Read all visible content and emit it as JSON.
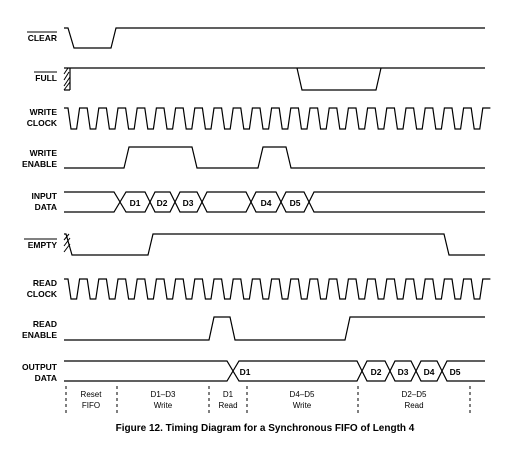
{
  "signals": [
    {
      "id": "clear",
      "lines": [
        "CLEAR"
      ],
      "overbar": true
    },
    {
      "id": "full",
      "lines": [
        "FULL"
      ],
      "overbar": true
    },
    {
      "id": "write-clock",
      "lines": [
        "WRITE",
        "CLOCK"
      ],
      "overbar": false
    },
    {
      "id": "write-enable",
      "lines": [
        "WRITE",
        "ENABLE"
      ],
      "overbar": false
    },
    {
      "id": "input-data",
      "lines": [
        "INPUT",
        "DATA"
      ],
      "overbar": false
    },
    {
      "id": "empty",
      "lines": [
        "EMPTY"
      ],
      "overbar": true
    },
    {
      "id": "read-clock",
      "lines": [
        "READ",
        "CLOCK"
      ],
      "overbar": false
    },
    {
      "id": "read-enable",
      "lines": [
        "READ",
        "ENABLE"
      ],
      "overbar": false
    },
    {
      "id": "output-data",
      "lines": [
        "OUTPUT",
        "DATA"
      ],
      "overbar": false
    }
  ],
  "input_data_words": [
    "D1",
    "D2",
    "D3",
    "D4",
    "D5"
  ],
  "output_data_words": [
    "D1",
    "D2",
    "D3",
    "D4",
    "D5"
  ],
  "phases": [
    {
      "lines": [
        "Reset",
        "FIFO"
      ]
    },
    {
      "lines": [
        "D1–D3",
        "Write"
      ]
    },
    {
      "lines": [
        "D1",
        "Read"
      ]
    },
    {
      "lines": [
        "D4–D5",
        "Write"
      ]
    },
    {
      "lines": [
        "D2–D5",
        "Read"
      ]
    }
  ],
  "caption": "Figure 12.  Timing Diagram for a Synchronous FIFO of Length 4"
}
